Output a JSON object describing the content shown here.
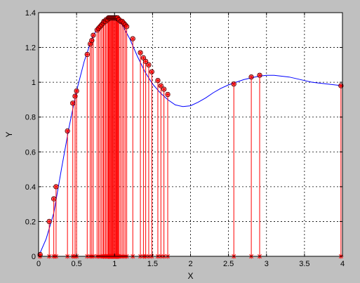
{
  "chart_data": {
    "type": "line",
    "title": "",
    "xlabel": "X",
    "ylabel": "Y",
    "xlim": [
      0,
      4
    ],
    "ylim": [
      0,
      1.4
    ],
    "x_ticks": [
      0,
      0.5,
      1,
      1.5,
      2,
      2.5,
      3,
      3.5,
      4
    ],
    "x_tick_labels": [
      "0",
      "0.5",
      "1",
      "1.5",
      "2",
      "2.5",
      "3",
      "3.5",
      "4"
    ],
    "y_ticks": [
      0,
      0.2,
      0.4,
      0.6,
      0.8,
      1,
      1.2,
      1.4
    ],
    "y_tick_labels": [
      "0",
      "0.2",
      "0.4",
      "0.6",
      "0.8",
      "1",
      "1.2",
      "1.4"
    ],
    "grid": true,
    "curve_color": "#0000ff",
    "marker_color": "#ff0000",
    "circle_color": "#000000",
    "plot_background": "#ffffff",
    "figure_background": "#c0c0c0",
    "curve": {
      "x": [
        0,
        0.1,
        0.2,
        0.3,
        0.4,
        0.5,
        0.6,
        0.7,
        0.8,
        0.9,
        1.0,
        1.1,
        1.2,
        1.3,
        1.4,
        1.5,
        1.6,
        1.7,
        1.8,
        1.9,
        2.0,
        2.1,
        2.2,
        2.3,
        2.4,
        2.5,
        2.6,
        2.7,
        2.8,
        2.9,
        3.0,
        3.1,
        3.2,
        3.3,
        3.4,
        3.5,
        3.6,
        3.7,
        3.8,
        3.9,
        4.0
      ],
      "y": [
        0.0,
        0.1,
        0.25,
        0.5,
        0.74,
        0.95,
        1.12,
        1.25,
        1.33,
        1.37,
        1.37,
        1.33,
        1.25,
        1.15,
        1.06,
        0.99,
        0.94,
        0.9,
        0.87,
        0.86,
        0.865,
        0.885,
        0.91,
        0.94,
        0.965,
        0.985,
        1.0,
        1.015,
        1.025,
        1.035,
        1.04,
        1.04,
        1.035,
        1.03,
        1.02,
        1.01,
        1.0,
        0.995,
        0.99,
        0.985,
        0.98
      ]
    },
    "samples": {
      "x": [
        0.02,
        0.14,
        0.2,
        0.23,
        0.38,
        0.45,
        0.48,
        0.5,
        0.64,
        0.68,
        0.7,
        0.72,
        0.77,
        0.79,
        0.81,
        0.83,
        0.85,
        0.86,
        0.88,
        0.89,
        0.91,
        0.92,
        0.93,
        0.94,
        0.95,
        0.96,
        0.97,
        0.98,
        0.99,
        1.0,
        1.01,
        1.02,
        1.03,
        1.04,
        1.05,
        1.06,
        1.08,
        1.1,
        1.12,
        1.14,
        1.16,
        1.24,
        1.34,
        1.38,
        1.41,
        1.45,
        1.49,
        1.57,
        1.61,
        1.65,
        1.7,
        2.57,
        2.8,
        2.91,
        3.98
      ],
      "y": [
        0.01,
        0.2,
        0.33,
        0.4,
        0.72,
        0.88,
        0.92,
        0.95,
        1.16,
        1.22,
        1.24,
        1.27,
        1.3,
        1.31,
        1.32,
        1.33,
        1.34,
        1.35,
        1.35,
        1.36,
        1.36,
        1.37,
        1.37,
        1.37,
        1.37,
        1.37,
        1.37,
        1.37,
        1.37,
        1.37,
        1.37,
        1.37,
        1.37,
        1.37,
        1.36,
        1.36,
        1.35,
        1.35,
        1.34,
        1.33,
        1.32,
        1.25,
        1.17,
        1.14,
        1.12,
        1.1,
        1.06,
        1.01,
        0.98,
        0.96,
        0.93,
        0.99,
        1.03,
        1.04,
        0.98
      ]
    }
  }
}
